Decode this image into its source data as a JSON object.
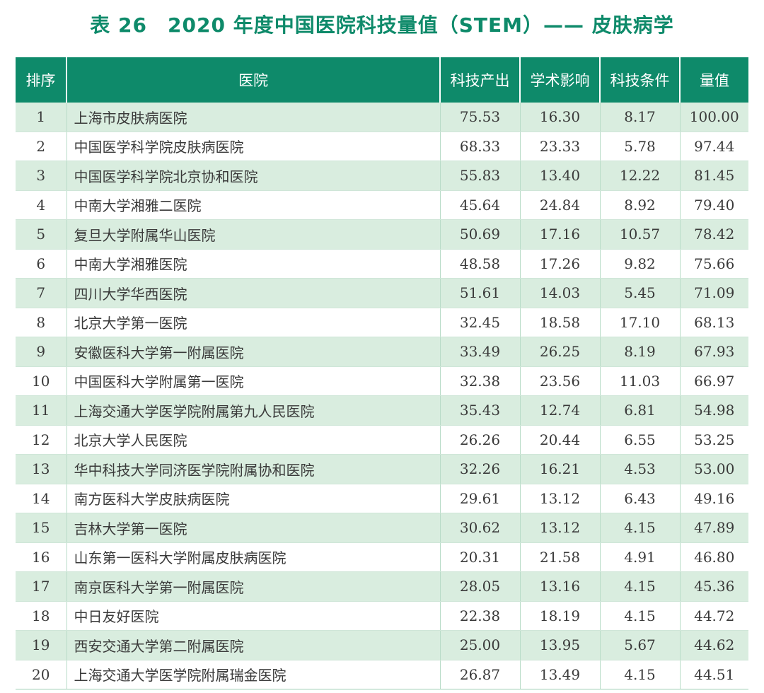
{
  "title": "表 26　2020 年度中国医院科技量值（STEM）—— 皮肤病学",
  "headers": [
    "排序",
    "医院",
    "科技产出",
    "学术影响",
    "科技条件",
    "量值"
  ],
  "rows": [
    [
      "1",
      "上海市皮肤病医院",
      "75.53",
      "16.30",
      "8.17",
      "100.00"
    ],
    [
      "2",
      "中国医学科学院皮肤病医院",
      "68.33",
      "23.33",
      "5.78",
      "97.44"
    ],
    [
      "3",
      "中国医学科学院北京协和医院",
      "55.83",
      "13.40",
      "12.22",
      "81.45"
    ],
    [
      "4",
      "中南大学湘雅二医院",
      "45.64",
      "24.84",
      "8.92",
      "79.40"
    ],
    [
      "5",
      "复旦大学附属华山医院",
      "50.69",
      "17.16",
      "10.57",
      "78.42"
    ],
    [
      "6",
      "中南大学湘雅医院",
      "48.58",
      "17.26",
      "9.82",
      "75.66"
    ],
    [
      "7",
      "四川大学华西医院",
      "51.61",
      "14.03",
      "5.45",
      "71.09"
    ],
    [
      "8",
      "北京大学第一医院",
      "32.45",
      "18.58",
      "17.10",
      "68.13"
    ],
    [
      "9",
      "安徽医科大学第一附属医院",
      "33.49",
      "26.25",
      "8.19",
      "67.93"
    ],
    [
      "10",
      "中国医科大学附属第一医院",
      "32.38",
      "23.56",
      "11.03",
      "66.97"
    ],
    [
      "11",
      "上海交通大学医学院附属第九人民医院",
      "35.43",
      "12.74",
      "6.81",
      "54.98"
    ],
    [
      "12",
      "北京大学人民医院",
      "26.26",
      "20.44",
      "6.55",
      "53.25"
    ],
    [
      "13",
      "华中科技大学同济医学院附属协和医院",
      "32.26",
      "16.21",
      "4.53",
      "53.00"
    ],
    [
      "14",
      "南方医科大学皮肤病医院",
      "29.61",
      "13.12",
      "6.43",
      "49.16"
    ],
    [
      "15",
      "吉林大学第一医院",
      "30.62",
      "13.12",
      "4.15",
      "47.89"
    ],
    [
      "16",
      "山东第一医科大学附属皮肤病医院",
      "20.31",
      "21.58",
      "4.91",
      "46.80"
    ],
    [
      "17",
      "南京医科大学第一附属医院",
      "28.05",
      "13.16",
      "4.15",
      "45.36"
    ],
    [
      "18",
      "中日友好医院",
      "22.38",
      "18.19",
      "4.15",
      "44.72"
    ],
    [
      "19",
      "西安交通大学第二附属医院",
      "25.00",
      "13.95",
      "5.67",
      "44.62"
    ],
    [
      "20",
      "上海交通大学医学院附属瑞金医院",
      "26.87",
      "13.49",
      "4.15",
      "44.51"
    ]
  ],
  "colors": {
    "accent": "#0e8a6a",
    "band": "#d9eddf",
    "text": "#3a3a3a"
  }
}
